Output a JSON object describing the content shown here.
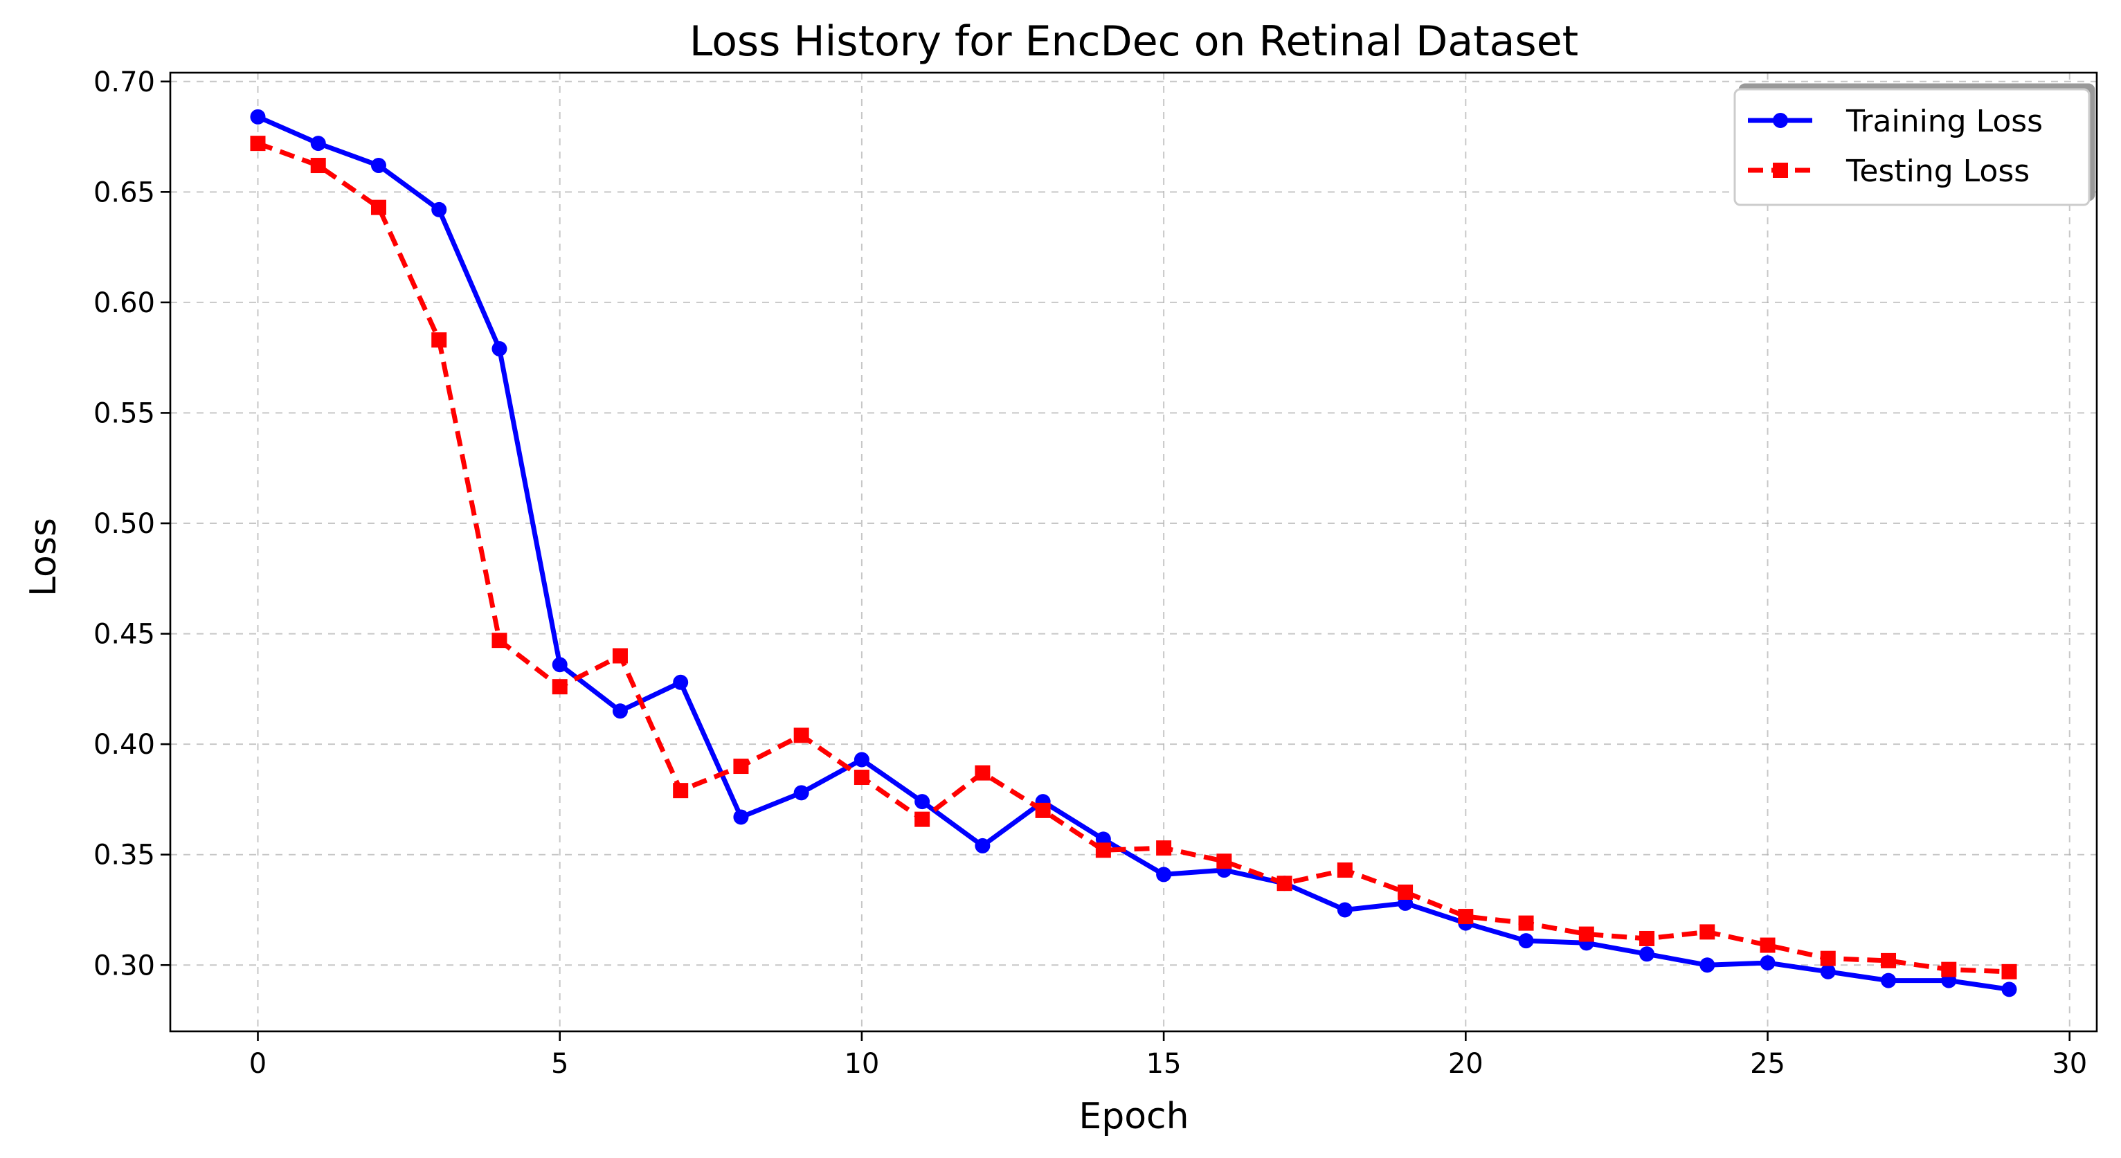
{
  "chart_data": {
    "type": "line",
    "title": "Loss History for EncDec on Retinal Dataset",
    "xlabel": "Epoch",
    "ylabel": "Loss",
    "xlim": [
      -1.45,
      30.45
    ],
    "ylim": [
      0.27,
      0.704
    ],
    "xticks": [
      0,
      5,
      10,
      15,
      20,
      25,
      30
    ],
    "xtick_labels": [
      "0",
      "5",
      "10",
      "15",
      "20",
      "25",
      "30"
    ],
    "yticks": [
      0.3,
      0.35,
      0.4,
      0.45,
      0.5,
      0.55,
      0.6,
      0.65,
      0.7
    ],
    "ytick_labels": [
      "0.30",
      "0.35",
      "0.40",
      "0.45",
      "0.50",
      "0.55",
      "0.60",
      "0.65",
      "0.70"
    ],
    "grid": true,
    "legend_position": "top-right",
    "x": [
      0,
      1,
      2,
      3,
      4,
      5,
      6,
      7,
      8,
      9,
      10,
      11,
      12,
      13,
      14,
      15,
      16,
      17,
      18,
      19,
      20,
      21,
      22,
      23,
      24,
      25,
      26,
      27,
      28,
      29
    ],
    "series": [
      {
        "name": "Training Loss",
        "color": "#0000ff",
        "line_style": "solid",
        "marker": "circle",
        "values": [
          0.684,
          0.672,
          0.662,
          0.642,
          0.579,
          0.436,
          0.415,
          0.428,
          0.367,
          0.378,
          0.393,
          0.374,
          0.354,
          0.374,
          0.357,
          0.341,
          0.343,
          0.337,
          0.325,
          0.328,
          0.319,
          0.311,
          0.31,
          0.305,
          0.3,
          0.301,
          0.297,
          0.293,
          0.293,
          0.289
        ]
      },
      {
        "name": "Testing Loss",
        "color": "#ff0000",
        "line_style": "dashed",
        "marker": "square",
        "values": [
          0.672,
          0.662,
          0.643,
          0.583,
          0.447,
          0.426,
          0.44,
          0.379,
          0.39,
          0.404,
          0.385,
          0.366,
          0.387,
          0.37,
          0.352,
          0.353,
          0.347,
          0.337,
          0.343,
          0.333,
          0.322,
          0.319,
          0.314,
          0.312,
          0.315,
          0.309,
          0.303,
          0.302,
          0.298,
          0.297
        ]
      }
    ]
  }
}
